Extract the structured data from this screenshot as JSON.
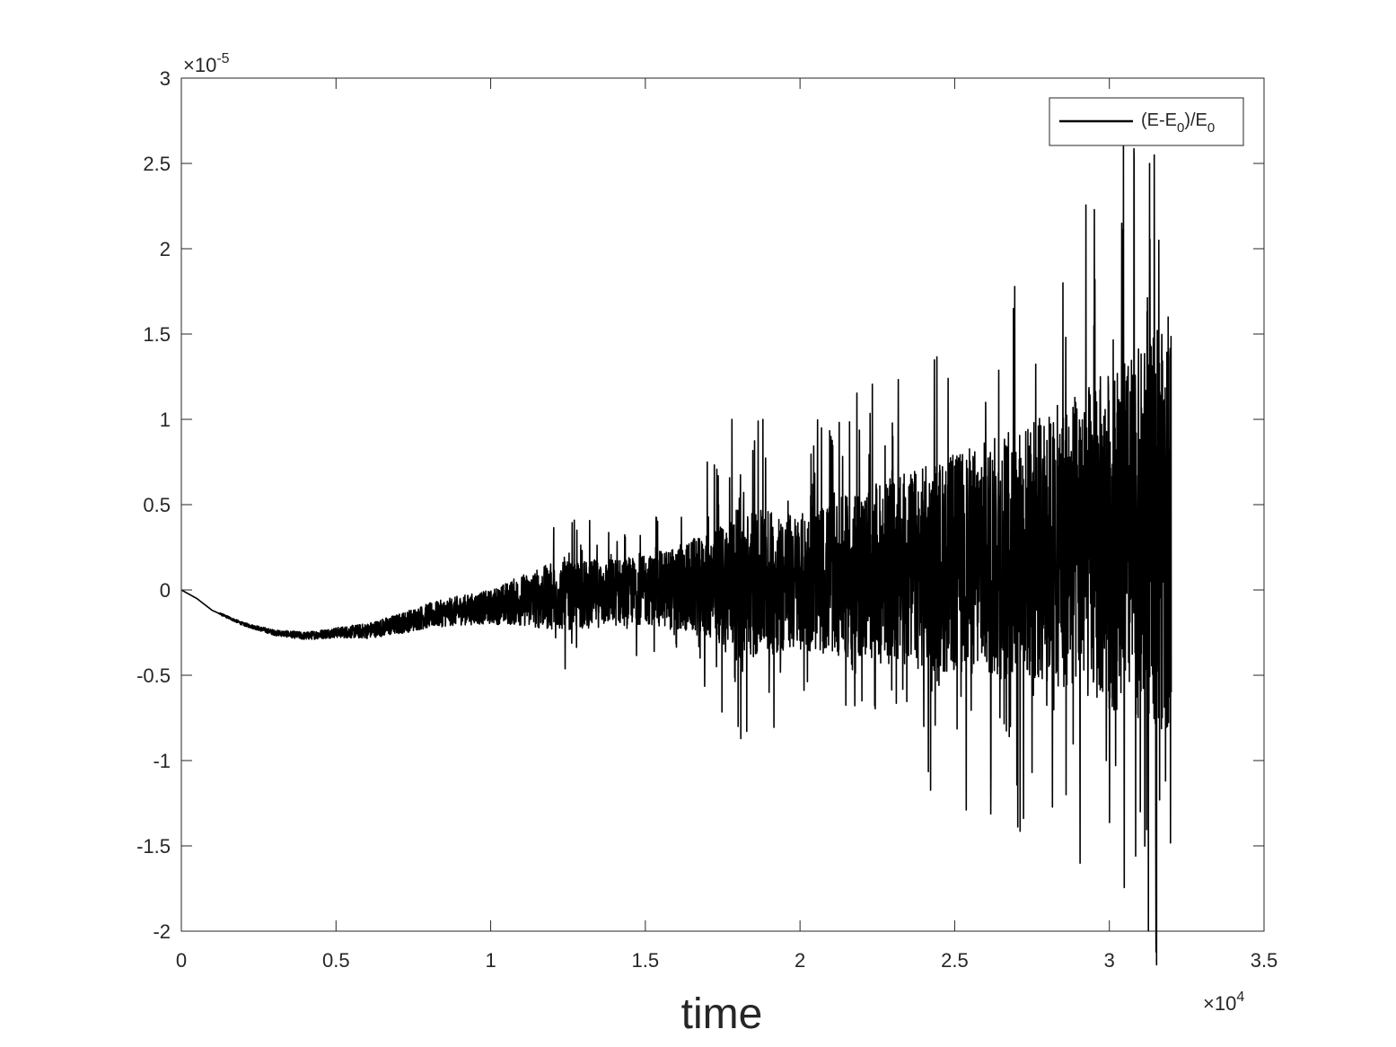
{
  "chart_data": {
    "type": "line",
    "title": "",
    "xlabel": "time",
    "ylabel": "",
    "x_exponent_label": "×10",
    "x_exponent": "4",
    "y_exponent_label": "×10",
    "y_exponent": "-5",
    "xlim": [
      0,
      35000
    ],
    "ylim": [
      -2e-05,
      3e-05
    ],
    "x_ticks": [
      0,
      5000,
      10000,
      15000,
      20000,
      25000,
      30000,
      35000
    ],
    "x_tick_labels": [
      "0",
      "0.5",
      "1",
      "1.5",
      "2",
      "2.5",
      "3",
      "3.5"
    ],
    "y_ticks": [
      -2e-05,
      -1.5e-05,
      -1e-05,
      -5e-06,
      0,
      5e-06,
      1e-05,
      1.5e-05,
      2e-05,
      2.5e-05,
      3e-05
    ],
    "y_tick_labels": [
      "-2",
      "-1.5",
      "-1",
      "-0.5",
      "0",
      "0.5",
      "1",
      "1.5",
      "2",
      "2.5",
      "3"
    ],
    "grid": false,
    "legend_position": "top-right",
    "series": [
      {
        "name": "(E-E0)/E0",
        "legend_main": "(E-E",
        "legend_sub1": "0",
        "legend_mid": ")/E",
        "legend_sub2": "0",
        "color": "#000000",
        "trend": [
          [
            0,
            0
          ],
          [
            500,
            -5e-07
          ],
          [
            1000,
            -1.2e-06
          ],
          [
            2000,
            -2e-06
          ],
          [
            3000,
            -2.5e-06
          ],
          [
            4000,
            -2.7e-06
          ],
          [
            5000,
            -2.5e-06
          ],
          [
            6000,
            -2.4e-06
          ],
          [
            7000,
            -2e-06
          ],
          [
            8000,
            -1.5e-06
          ],
          [
            9000,
            -1.2e-06
          ],
          [
            10000,
            -1e-06
          ],
          [
            11000,
            -6e-07
          ],
          [
            12000,
            -4e-07
          ],
          [
            15000,
            0
          ],
          [
            20000,
            5e-07
          ],
          [
            25000,
            1.5e-06
          ],
          [
            30000,
            3e-06
          ],
          [
            32000,
            3.5e-06
          ]
        ],
        "envelope": [
          [
            0,
            0
          ],
          [
            2000,
            1e-07
          ],
          [
            5000,
            3e-07
          ],
          [
            7000,
            6e-07
          ],
          [
            10000,
            1e-06
          ],
          [
            12000,
            2e-06
          ],
          [
            15000,
            2e-06
          ],
          [
            17000,
            3e-06
          ],
          [
            18000,
            4.5e-06
          ],
          [
            20000,
            4e-06
          ],
          [
            22000,
            5e-06
          ],
          [
            25000,
            6.5e-06
          ],
          [
            28000,
            8e-06
          ],
          [
            30000,
            1e-05
          ],
          [
            32000,
            1.2e-05
          ]
        ],
        "spikes": [
          [
            12100,
            -2.8e-06
          ],
          [
            17000,
            7.5e-06
          ],
          [
            17300,
            -4.5e-06
          ],
          [
            17800,
            1e-05
          ],
          [
            18000,
            -8e-06
          ],
          [
            18800,
            1e-05
          ],
          [
            19000,
            -6e-06
          ],
          [
            21000,
            9e-06
          ],
          [
            22000,
            -6.5e-06
          ],
          [
            23000,
            9e-06
          ],
          [
            24000,
            -8e-06
          ],
          [
            26000,
            1.1e-05
          ],
          [
            26900,
            1.65e-05
          ],
          [
            27500,
            -1.07e-05
          ],
          [
            28500,
            1.8e-05
          ],
          [
            28600,
            -1.2e-05
          ],
          [
            29500,
            1.55e-05
          ],
          [
            29900,
            -1e-05
          ],
          [
            30400,
            2.15e-05
          ],
          [
            30800,
            2.53e-05
          ],
          [
            30850,
            -1.56e-05
          ],
          [
            31000,
            -1.3e-05
          ],
          [
            31300,
            2.5e-05
          ],
          [
            31450,
            2.55e-05
          ],
          [
            31500,
            -1.41e-05
          ],
          [
            31600,
            2.05e-05
          ],
          [
            31900,
            1.6e-05
          ],
          [
            32000,
            -6e-06
          ]
        ],
        "x_end": 32000
      }
    ]
  }
}
